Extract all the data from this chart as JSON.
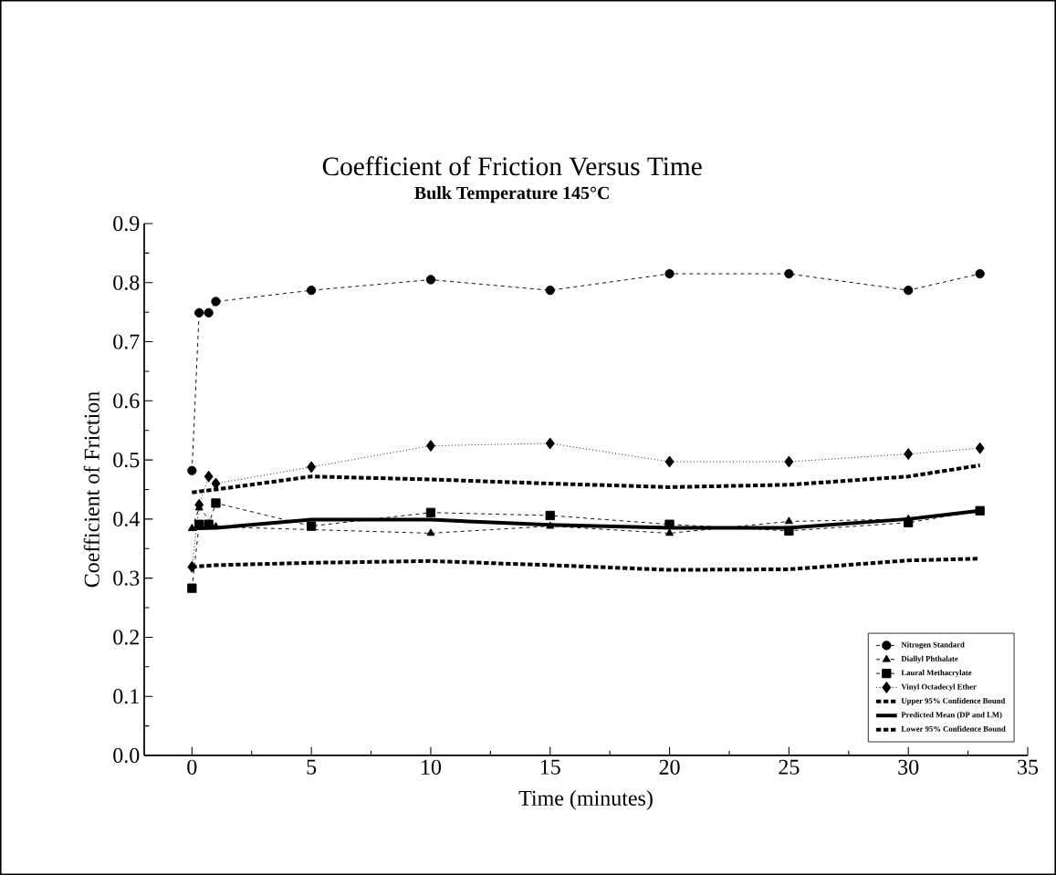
{
  "chart_data": {
    "type": "line",
    "title": "Coefficient of Friction Versus Time",
    "subtitle": "Bulk Temperature 145°C",
    "xlabel": "Time (minutes)",
    "ylabel": "Coefficient of Friction",
    "xlim": [
      -2,
      35
    ],
    "ylim": [
      0,
      0.9
    ],
    "xticks": [
      0,
      5,
      10,
      15,
      20,
      25,
      30,
      35
    ],
    "yticks": [
      {
        "value": 0,
        "label": "0.0"
      },
      0.1,
      0.2,
      0.3,
      0.4,
      0.5,
      0.6,
      0.7,
      0.8,
      0.9
    ],
    "legend": "bottom right",
    "grid": false,
    "series": [
      {
        "name": "Nitrogen Standard",
        "color": "#000000",
        "marker": "circle",
        "line_style": "dashed",
        "x": [
          0,
          0.3,
          0.7,
          1,
          5,
          10,
          15,
          20,
          25,
          30,
          33
        ],
        "values": [
          0.482,
          0.749,
          0.749,
          0.768,
          0.787,
          0.805,
          0.787,
          0.815,
          0.815,
          0.787,
          0.815
        ]
      },
      {
        "name": "Diallyl Phthalate",
        "color": "#000000",
        "marker": "triangle",
        "line_style": "dashed",
        "x": [
          0,
          0.3,
          0.7,
          1,
          5,
          10,
          15,
          20,
          25,
          30,
          33
        ],
        "values": [
          0.384,
          0.419,
          null,
          0.387,
          null,
          0.376,
          0.388,
          0.376,
          0.396,
          0.4,
          0.413
        ]
      },
      {
        "name": "Laural Methacrylate",
        "color": "#000000",
        "marker": "square",
        "line_style": "dashed",
        "x": [
          0,
          0.3,
          0.7,
          1,
          5,
          10,
          15,
          20,
          25,
          30,
          33
        ],
        "values": [
          0.283,
          0.391,
          0.391,
          0.427,
          0.388,
          0.411,
          0.406,
          0.391,
          0.38,
          0.394,
          0.414
        ]
      },
      {
        "name": "Vinyl Octadecyl Ether",
        "color": "#000000",
        "marker": "diamond",
        "line_style": "dotted",
        "x": [
          0,
          0.3,
          0.7,
          1,
          5,
          10,
          15,
          20,
          25,
          30,
          33
        ],
        "values": [
          0.319,
          0.424,
          0.472,
          0.46,
          0.488,
          0.524,
          0.528,
          0.497,
          0.497,
          0.51,
          0.52
        ]
      },
      {
        "name": "Upper 95% Confidence Bound",
        "color": "#000000",
        "marker": "none",
        "line_style": "dashed",
        "x": [
          0,
          1,
          5,
          10,
          15,
          20,
          25,
          30,
          33
        ],
        "values": [
          0.445,
          0.45,
          0.472,
          0.467,
          0.46,
          0.454,
          0.458,
          0.472,
          0.491
        ]
      },
      {
        "name": "Predicted Mean (DP and LM)",
        "color": "#000000",
        "marker": "none",
        "line_style": "solid",
        "x": [
          0,
          1,
          5,
          10,
          15,
          20,
          25,
          30,
          33
        ],
        "values": [
          0.384,
          0.385,
          0.399,
          0.399,
          0.39,
          0.385,
          0.385,
          0.4,
          0.414
        ]
      },
      {
        "name": "Lower 95% Confidence Bound",
        "color": "#000000",
        "marker": "none",
        "line_style": "dashed",
        "x": [
          0,
          1,
          5,
          10,
          15,
          20,
          25,
          30,
          33
        ],
        "values": [
          0.319,
          0.322,
          0.326,
          0.329,
          0.322,
          0.314,
          0.315,
          0.33,
          0.333
        ]
      }
    ]
  }
}
